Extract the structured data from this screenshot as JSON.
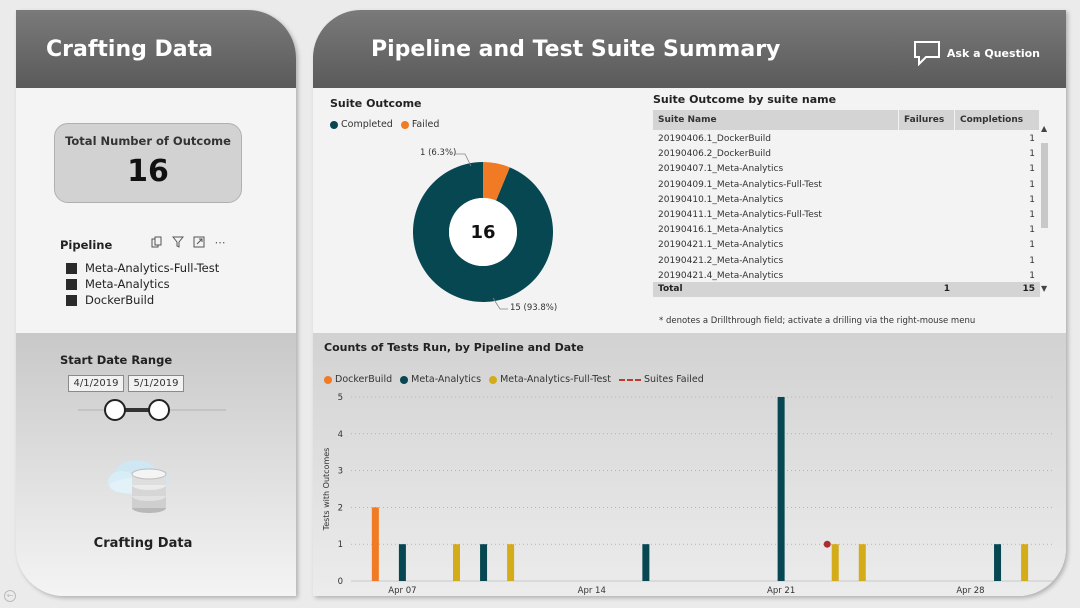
{
  "left_panel": {
    "header_title": "Crafting Data",
    "kpi": {
      "label": "Total Number of Outcome",
      "value": "16"
    },
    "pipeline_slicer": {
      "title": "Pipeline",
      "items": [
        "Meta-Analytics-Full-Test",
        "Meta-Analytics",
        "DockerBuild"
      ]
    },
    "date_range": {
      "title": "Start Date Range",
      "start": "4/1/2019",
      "end": "5/1/2019"
    },
    "brand_label": "Crafting Data"
  },
  "header": {
    "title": "Pipeline and Test Suite Summary",
    "ask_label": "Ask a Question"
  },
  "suite_outcome": {
    "title": "Suite Outcome",
    "legend": [
      {
        "name": "Completed",
        "color": "#064752"
      },
      {
        "name": "Failed",
        "color": "#f07b24"
      }
    ],
    "center_value": "16",
    "label_failed": "1 (6.3%)",
    "label_completed": "15 (93.8%)"
  },
  "table": {
    "title": "Suite Outcome by suite name",
    "columns": [
      "Suite Name",
      "Failures",
      "Completions"
    ],
    "rows": [
      [
        "20190406.1_DockerBuild",
        "",
        "1"
      ],
      [
        "20190406.2_DockerBuild",
        "",
        "1"
      ],
      [
        "20190407.1_Meta-Analytics",
        "",
        "1"
      ],
      [
        "20190409.1_Meta-Analytics-Full-Test",
        "",
        "1"
      ],
      [
        "20190410.1_Meta-Analytics",
        "",
        "1"
      ],
      [
        "20190411.1_Meta-Analytics-Full-Test",
        "",
        "1"
      ],
      [
        "20190416.1_Meta-Analytics",
        "",
        "1"
      ],
      [
        "20190421.1_Meta-Analytics",
        "",
        "1"
      ],
      [
        "20190421.2_Meta-Analytics",
        "",
        "1"
      ],
      [
        "20190421.4_Meta-Analytics",
        "",
        "1"
      ]
    ],
    "total": [
      "Total",
      "1",
      "15"
    ],
    "note": "* denotes a Drillthrough field; activate a drilling via the right-mouse menu"
  },
  "colors": {
    "docker": "#f07b24",
    "meta": "#064752",
    "full": "#d4ac1a",
    "failed": "#b22b2b"
  },
  "chart_data": [
    {
      "type": "pie",
      "title": "Suite Outcome",
      "categories": [
        "Completed",
        "Failed"
      ],
      "values": [
        15,
        1
      ]
    },
    {
      "type": "bar",
      "title": "Counts of Tests Run, by Pipeline and Date",
      "ylabel": "Tests with Outcomes",
      "ylim": [
        0,
        5
      ],
      "yticks": [
        "0",
        "1",
        "2",
        "3",
        "4",
        "5"
      ],
      "xticks": [
        {
          "label": "Apr 07",
          "day": 7
        },
        {
          "label": "Apr 14",
          "day": 14
        },
        {
          "label": "Apr 21",
          "day": 21
        },
        {
          "label": "Apr 28",
          "day": 28
        }
      ],
      "legend": [
        "DockerBuild",
        "Meta-Analytics",
        "Meta-Analytics-Full-Test",
        "Suites Failed"
      ],
      "series": [
        {
          "name": "DockerBuild",
          "points": [
            {
              "day": 6,
              "value": 2
            }
          ]
        },
        {
          "name": "Meta-Analytics",
          "points": [
            {
              "day": 7,
              "value": 1
            },
            {
              "day": 10,
              "value": 1
            },
            {
              "day": 16,
              "value": 1
            },
            {
              "day": 21,
              "value": 5
            },
            {
              "day": 29,
              "value": 1
            }
          ]
        },
        {
          "name": "Meta-Analytics-Full-Test",
          "points": [
            {
              "day": 9,
              "value": 1
            },
            {
              "day": 11,
              "value": 1
            },
            {
              "day": 23,
              "value": 1
            },
            {
              "day": 24,
              "value": 1
            },
            {
              "day": 30,
              "value": 1
            }
          ]
        },
        {
          "name": "Suites Failed",
          "points": [
            {
              "day": 23,
              "value": 1
            }
          ]
        }
      ]
    }
  ]
}
